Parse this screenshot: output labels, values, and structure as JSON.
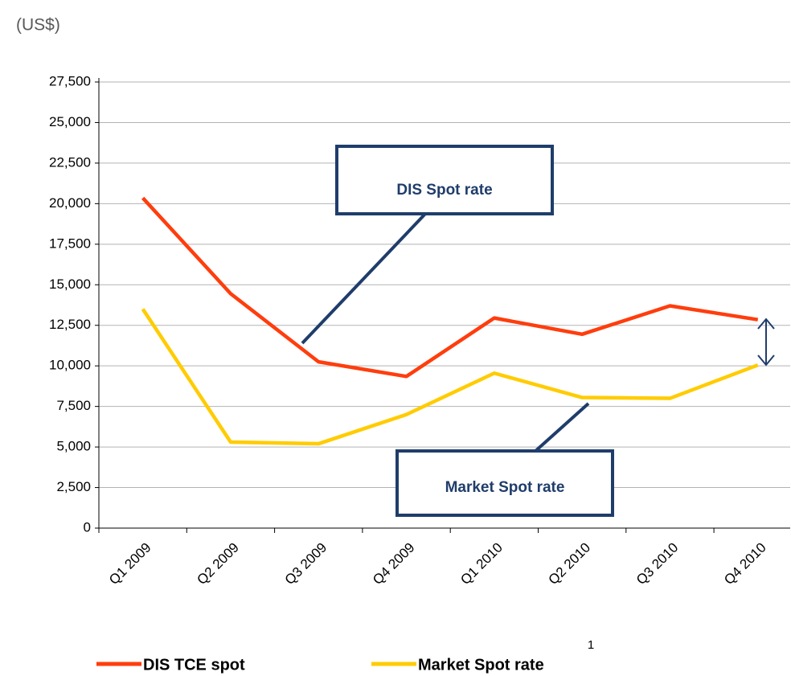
{
  "chart_data": {
    "type": "line",
    "unit_label": "(US$)",
    "categories": [
      "Q1 2009",
      "Q2 2009",
      "Q3 2009",
      "Q4 2009",
      "Q1 2010",
      "Q2 2010",
      "Q3 2010",
      "Q4 2010"
    ],
    "series": [
      {
        "name": "DIS TCE spot",
        "color": "#ff3d0d",
        "values": [
          20350,
          14450,
          10250,
          9350,
          12950,
          11950,
          13700,
          12850
        ]
      },
      {
        "name": "Market Spot rate",
        "color": "#ffcc00",
        "values": [
          13500,
          5300,
          5200,
          7000,
          9550,
          8050,
          8000,
          10050
        ]
      }
    ],
    "ylim": [
      0,
      27500
    ],
    "yticks": [
      0,
      {
        "value": 2500,
        "label": "2,500"
      },
      {
        "value": 5000,
        "label": "5,000"
      },
      {
        "value": 7500,
        "label": "7,500"
      },
      {
        "value": 10000,
        "label": "10,000"
      },
      {
        "value": 12500,
        "label": "12,500"
      },
      {
        "value": 15000,
        "label": "15,000"
      },
      {
        "value": 17500,
        "label": "17,500"
      },
      {
        "value": 20000,
        "label": "20,000"
      },
      {
        "value": 22500,
        "label": "22,500"
      },
      {
        "value": 25000,
        "label": "25,000"
      },
      {
        "value": 27500,
        "label": "27,500"
      }
    ],
    "grid": true,
    "annotations": [
      "DIS Spot rate",
      "Market Spot rate"
    ],
    "footnote": "1"
  }
}
